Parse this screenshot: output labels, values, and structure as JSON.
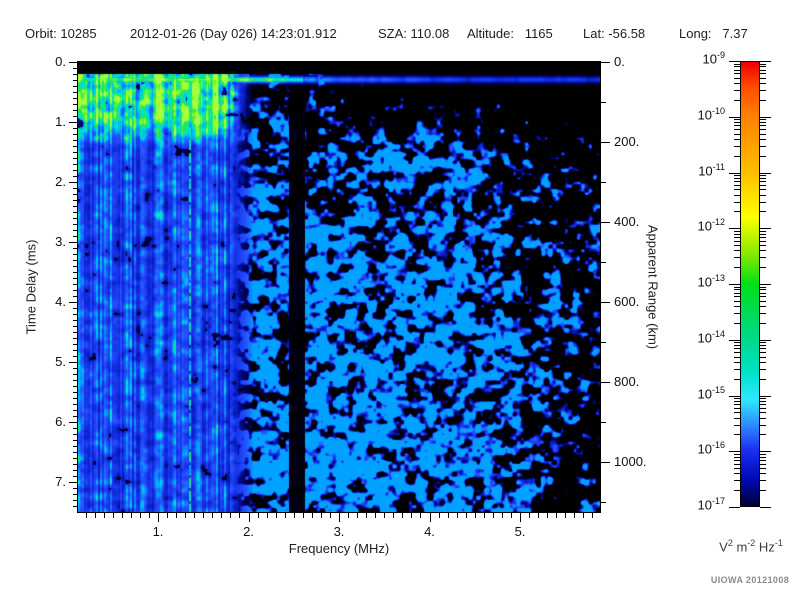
{
  "header": {
    "fields": [
      {
        "id": "orbit",
        "text": "Orbit: 10285"
      },
      {
        "id": "datetime",
        "text": "2012-01-26 (Day 026) 14:23:01.912"
      },
      {
        "id": "sza",
        "text": "SZA: 110.08"
      },
      {
        "id": "altitude",
        "text": "Altitude:   1165"
      },
      {
        "id": "lat",
        "text": "Lat: -56.58"
      },
      {
        "id": "long",
        "text": "Long:   7.37"
      }
    ]
  },
  "chart_data": {
    "type": "heatmap",
    "xlabel": "Frequency (MHz)",
    "ylabel_left": "Time Delay (ms)",
    "ylabel_right": "Apparent Range (km)",
    "x_range_mhz": [
      0.116,
      5.88
    ],
    "x_major_ticks": [
      1,
      2,
      3,
      4,
      5
    ],
    "x_major_labels": [
      "1.",
      "2.",
      "3.",
      "4.",
      "5."
    ],
    "x_minor_step": 0.1,
    "y_range_ms": [
      0,
      7.5
    ],
    "y_major_ticks": [
      0,
      1,
      2,
      3,
      4,
      5,
      6,
      7
    ],
    "y_major_labels": [
      "0.",
      "1.",
      "2.",
      "3.",
      "4.",
      "5.",
      "6.",
      "7."
    ],
    "y_minor_step": 0.1,
    "right_range_km": [
      0,
      1125
    ],
    "right_major_ticks": [
      0,
      200,
      400,
      600,
      800,
      1000
    ],
    "right_major_labels": [
      "0.",
      "200.",
      "400.",
      "600.",
      "800.",
      "1000."
    ],
    "right_minor_step": 100,
    "colorbar": {
      "decade_exponents": [
        -9,
        -10,
        -11,
        -12,
        -13,
        -14,
        -15,
        -16,
        -17
      ],
      "unit_parts": [
        [
          "V",
          "2"
        ],
        [
          "m",
          "-2"
        ],
        [
          "Hz",
          "-1"
        ]
      ],
      "gradient_stops": [
        [
          0.0,
          "#ee0000"
        ],
        [
          0.06,
          "#ff5000"
        ],
        [
          0.125,
          "#ff8200"
        ],
        [
          0.25,
          "#ffc000"
        ],
        [
          0.35,
          "#fdff00"
        ],
        [
          0.44,
          "#7ae800"
        ],
        [
          0.5,
          "#00df19"
        ],
        [
          0.625,
          "#00d98c"
        ],
        [
          0.7,
          "#00e2c8"
        ],
        [
          0.76,
          "#2ee9ff"
        ],
        [
          0.82,
          "#2e86ff"
        ],
        [
          0.875,
          "#1a2ef0"
        ],
        [
          0.94,
          "#0008b4"
        ],
        [
          1.0,
          "#000038"
        ]
      ]
    },
    "plot_colormap": [
      [
        0.0,
        "#000000"
      ],
      [
        0.1,
        "#000042"
      ],
      [
        0.22,
        "#0011a2"
      ],
      [
        0.36,
        "#1430e8"
      ],
      [
        0.5,
        "#2853ff"
      ],
      [
        0.6,
        "#00a2ff"
      ],
      [
        0.7,
        "#00e8d0"
      ],
      [
        0.8,
        "#22e252"
      ],
      [
        0.9,
        "#93ff31"
      ],
      [
        1.0,
        "#eaff66"
      ]
    ],
    "features": {
      "top_blank_ms": 0.2,
      "surface_echo_line_ms": 0.27,
      "stripe_band_mhz": [
        0.116,
        2.05
      ],
      "bright_stripe_band_ms": [
        0.25,
        1.45
      ],
      "interference_line_mhz": 1.35,
      "quiet_gap_mhz": [
        2.44,
        2.62
      ]
    }
  },
  "footer": {
    "credit": "UIOWA 20121008"
  }
}
